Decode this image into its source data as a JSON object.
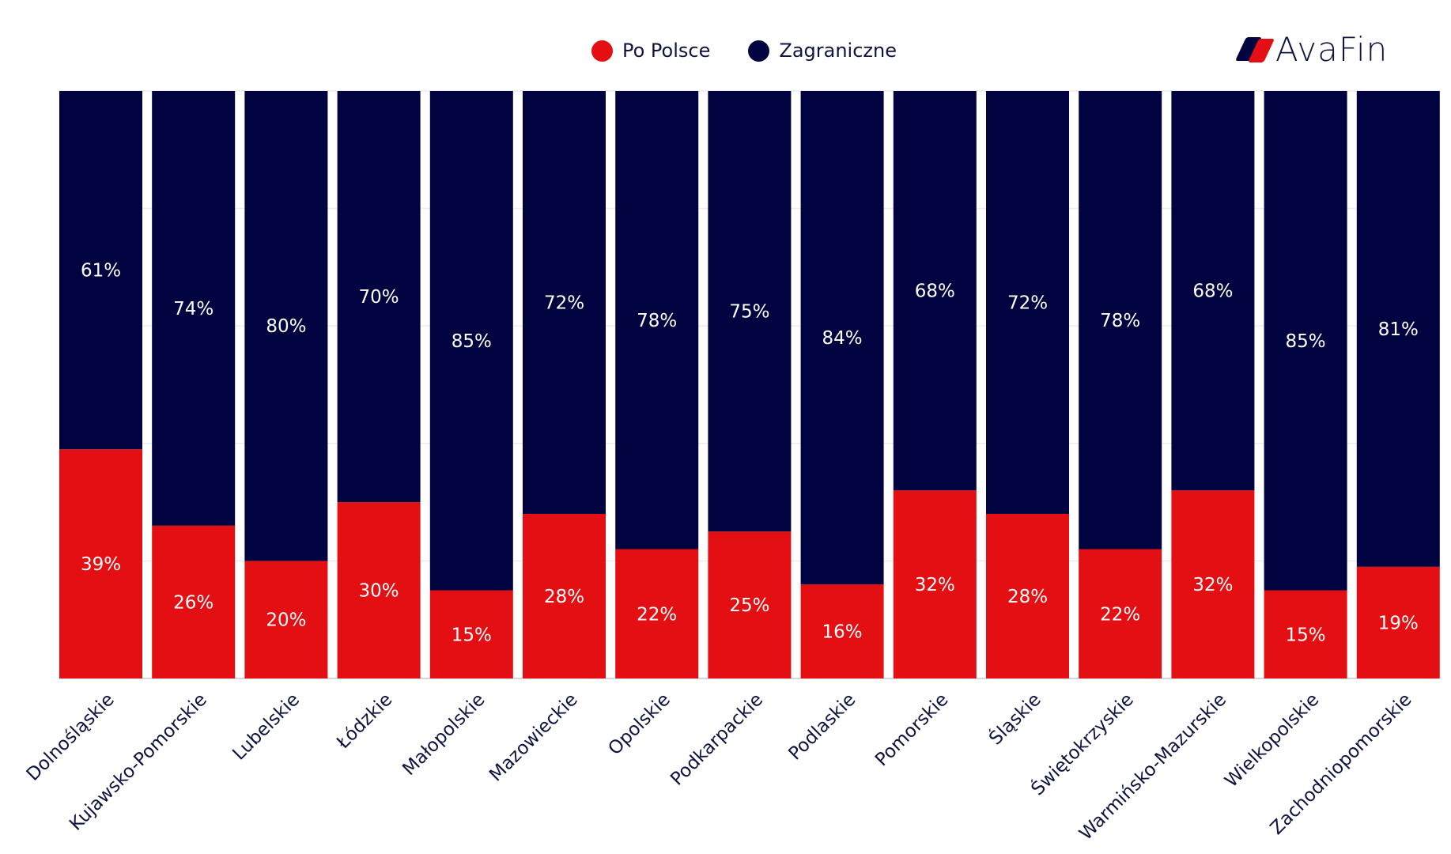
{
  "legend": {
    "items": [
      {
        "label": "Po Polsce",
        "color": "#e30f12"
      },
      {
        "label": "Zagraniczne",
        "color": "#000340"
      }
    ]
  },
  "logo": {
    "text": "AvaFin",
    "colors": {
      "dark": "#000340",
      "red": "#e30f12"
    }
  },
  "chart_data": {
    "type": "bar",
    "stacked": true,
    "title": "",
    "xlabel": "",
    "ylabel": "",
    "ylim": [
      0,
      100
    ],
    "grid": true,
    "legend_position": "top-center",
    "categories": [
      "Dolnośląskie",
      "Kujawsko-Pomorskie",
      "Lubelskie",
      "Łódzkie",
      "Małopolskie",
      "Mazowieckie",
      "Opolskie",
      "Podkarpackie",
      "Podlaskie",
      "Pomorskie",
      "Śląskie",
      "Świętokrzyskie",
      "Warmińsko-Mazurskie",
      "Wielkopolskie",
      "Zachodniopomorskie"
    ],
    "series": [
      {
        "name": "Po Polsce",
        "color": "#e30f12",
        "values": [
          39,
          26,
          20,
          30,
          15,
          28,
          22,
          25,
          16,
          32,
          28,
          22,
          32,
          15,
          19
        ]
      },
      {
        "name": "Zagraniczne",
        "color": "#000340",
        "values": [
          61,
          74,
          80,
          70,
          85,
          72,
          78,
          75,
          84,
          68,
          72,
          78,
          68,
          85,
          81
        ]
      }
    ],
    "label_suffix": "%",
    "label_color": "#ffffff",
    "tick_color": "#0f1340"
  }
}
